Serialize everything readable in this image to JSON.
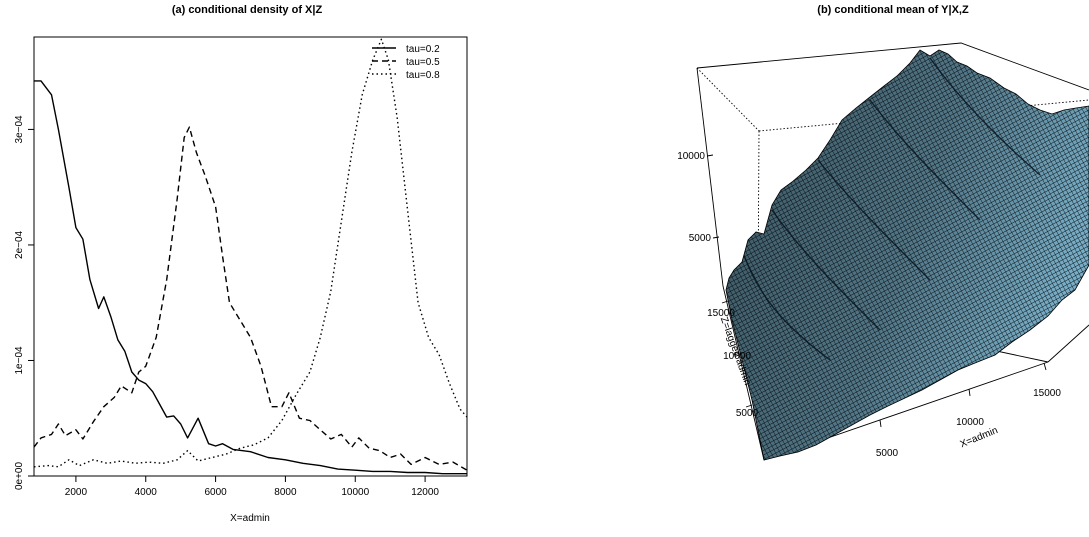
{
  "chart_data": [
    {
      "type": "line",
      "title": "(a) conditional density of X|Z",
      "xlabel": "X=admin",
      "ylabel": "",
      "xlim": [
        800,
        13200
      ],
      "ylim": [
        0,
        0.00038
      ],
      "x_ticks": [
        2000,
        4000,
        6000,
        8000,
        10000,
        12000
      ],
      "x_tick_labels": [
        "2000",
        "4000",
        "6000",
        "8000",
        "10000",
        "12000"
      ],
      "y_ticks": [
        0,
        0.0001,
        0.0002,
        0.0003
      ],
      "y_tick_labels": [
        "0e+00",
        "1e−04",
        "2e−04",
        "3e−04"
      ],
      "legend_position": "top-right",
      "grid": false,
      "series": [
        {
          "name": "tau=0.2",
          "line_style": "solid",
          "points": [
            [
              800,
              0.000342
            ],
            [
              1000,
              0.000342
            ],
            [
              1300,
              0.00033
            ],
            [
              1500,
              0.0003
            ],
            [
              1800,
              0.00025
            ],
            [
              2000,
              0.000215
            ],
            [
              2200,
              0.000205
            ],
            [
              2400,
              0.00017
            ],
            [
              2650,
              0.000145
            ],
            [
              2800,
              0.000155
            ],
            [
              3000,
              0.000138
            ],
            [
              3200,
              0.000118
            ],
            [
              3400,
              0.000108
            ],
            [
              3600,
              9e-05
            ],
            [
              3800,
              8.3e-05
            ],
            [
              4000,
              8e-05
            ],
            [
              4200,
              7.3e-05
            ],
            [
              4400,
              6.2e-05
            ],
            [
              4600,
              5.1e-05
            ],
            [
              4800,
              5.2e-05
            ],
            [
              5000,
              4.5e-05
            ],
            [
              5200,
              3.3e-05
            ],
            [
              5500,
              5e-05
            ],
            [
              5800,
              2.8e-05
            ],
            [
              6000,
              2.6e-05
            ],
            [
              6200,
              2.8e-05
            ],
            [
              6500,
              2.3e-05
            ],
            [
              7000,
              2.1e-05
            ],
            [
              7500,
              1.6e-05
            ],
            [
              8000,
              1.4e-05
            ],
            [
              8500,
              1.1e-05
            ],
            [
              9000,
              9e-06
            ],
            [
              9500,
              6e-06
            ],
            [
              10000,
              5e-06
            ],
            [
              10500,
              4e-06
            ],
            [
              11000,
              4e-06
            ],
            [
              11500,
              3e-06
            ],
            [
              12000,
              3e-06
            ],
            [
              12500,
              2e-06
            ],
            [
              13000,
              2e-06
            ],
            [
              13200,
              2e-06
            ]
          ]
        },
        {
          "name": "tau=0.5",
          "line_style": "dashed",
          "points": [
            [
              800,
              2.5e-05
            ],
            [
              1000,
              3.3e-05
            ],
            [
              1300,
              3.6e-05
            ],
            [
              1500,
              4.5e-05
            ],
            [
              1700,
              3.5e-05
            ],
            [
              2000,
              4e-05
            ],
            [
              2200,
              3.2e-05
            ],
            [
              2500,
              4.7e-05
            ],
            [
              2800,
              6e-05
            ],
            [
              3100,
              6.8e-05
            ],
            [
              3300,
              7.8e-05
            ],
            [
              3600,
              7.2e-05
            ],
            [
              3800,
              9e-05
            ],
            [
              4000,
              9.5e-05
            ],
            [
              4300,
              0.00012
            ],
            [
              4600,
              0.00017
            ],
            [
              4900,
              0.00024
            ],
            [
              5100,
              0.000293
            ],
            [
              5250,
              0.000302
            ],
            [
              5450,
              0.00028
            ],
            [
              5700,
              0.00026
            ],
            [
              6000,
              0.000233
            ],
            [
              6200,
              0.00019
            ],
            [
              6400,
              0.00015
            ],
            [
              6700,
              0.000135
            ],
            [
              7000,
              0.00012
            ],
            [
              7300,
              9.5e-05
            ],
            [
              7600,
              6e-05
            ],
            [
              7900,
              6e-05
            ],
            [
              8100,
              7.2e-05
            ],
            [
              8400,
              5e-05
            ],
            [
              8700,
              4.8e-05
            ],
            [
              9000,
              4e-05
            ],
            [
              9300,
              3.2e-05
            ],
            [
              9600,
              3.6e-05
            ],
            [
              9900,
              2.5e-05
            ],
            [
              10100,
              3.3e-05
            ],
            [
              10400,
              2.4e-05
            ],
            [
              10700,
              2.2e-05
            ],
            [
              11000,
              1.6e-05
            ],
            [
              11300,
              1.9e-05
            ],
            [
              11600,
              1e-05
            ],
            [
              12000,
              1.6e-05
            ],
            [
              12400,
              1e-05
            ],
            [
              12800,
              1.2e-05
            ],
            [
              13200,
              5e-06
            ]
          ]
        },
        {
          "name": "tau=0.8",
          "line_style": "dotted",
          "points": [
            [
              800,
              8e-06
            ],
            [
              1200,
              9e-06
            ],
            [
              1500,
              8e-06
            ],
            [
              1800,
              1.4e-05
            ],
            [
              2100,
              9e-06
            ],
            [
              2500,
              1.4e-05
            ],
            [
              2900,
              1.1e-05
            ],
            [
              3300,
              1.3e-05
            ],
            [
              3700,
              1.1e-05
            ],
            [
              4100,
              1.2e-05
            ],
            [
              4500,
              1.1e-05
            ],
            [
              4900,
              1.4e-05
            ],
            [
              5200,
              2.2e-05
            ],
            [
              5500,
              1.3e-05
            ],
            [
              5900,
              1.6e-05
            ],
            [
              6300,
              1.9e-05
            ],
            [
              6700,
              2.4e-05
            ],
            [
              7100,
              2.7e-05
            ],
            [
              7500,
              3.3e-05
            ],
            [
              7900,
              4.8e-05
            ],
            [
              8300,
              7e-05
            ],
            [
              8700,
              9e-05
            ],
            [
              9000,
              0.00012
            ],
            [
              9300,
              0.00016
            ],
            [
              9600,
              0.00022
            ],
            [
              9900,
              0.00028
            ],
            [
              10200,
              0.00033
            ],
            [
              10500,
              0.00036
            ],
            [
              10750,
              0.000378
            ],
            [
              10950,
              0.00036
            ],
            [
              11200,
              0.00031
            ],
            [
              11500,
              0.00023
            ],
            [
              11800,
              0.00015
            ],
            [
              12100,
              0.00012
            ],
            [
              12400,
              0.000105
            ],
            [
              12700,
              8e-05
            ],
            [
              13000,
              5.8e-05
            ],
            [
              13200,
              5.1e-05
            ]
          ]
        }
      ]
    },
    {
      "type": "surface3d",
      "title": "(b) conditional mean of Y|X,Z",
      "xlabel": "X=admin",
      "ylabel": "Z=lagged admin",
      "zlabel": "",
      "x_tick_labels": [
        "5000",
        "10000",
        "15000"
      ],
      "y_tick_labels": [
        "5000",
        "10000",
        "15000"
      ],
      "z_tick_labels": [
        "5000",
        "10000"
      ],
      "surface_color": "#7fb6cf",
      "mesh_color": "#000000"
    }
  ]
}
